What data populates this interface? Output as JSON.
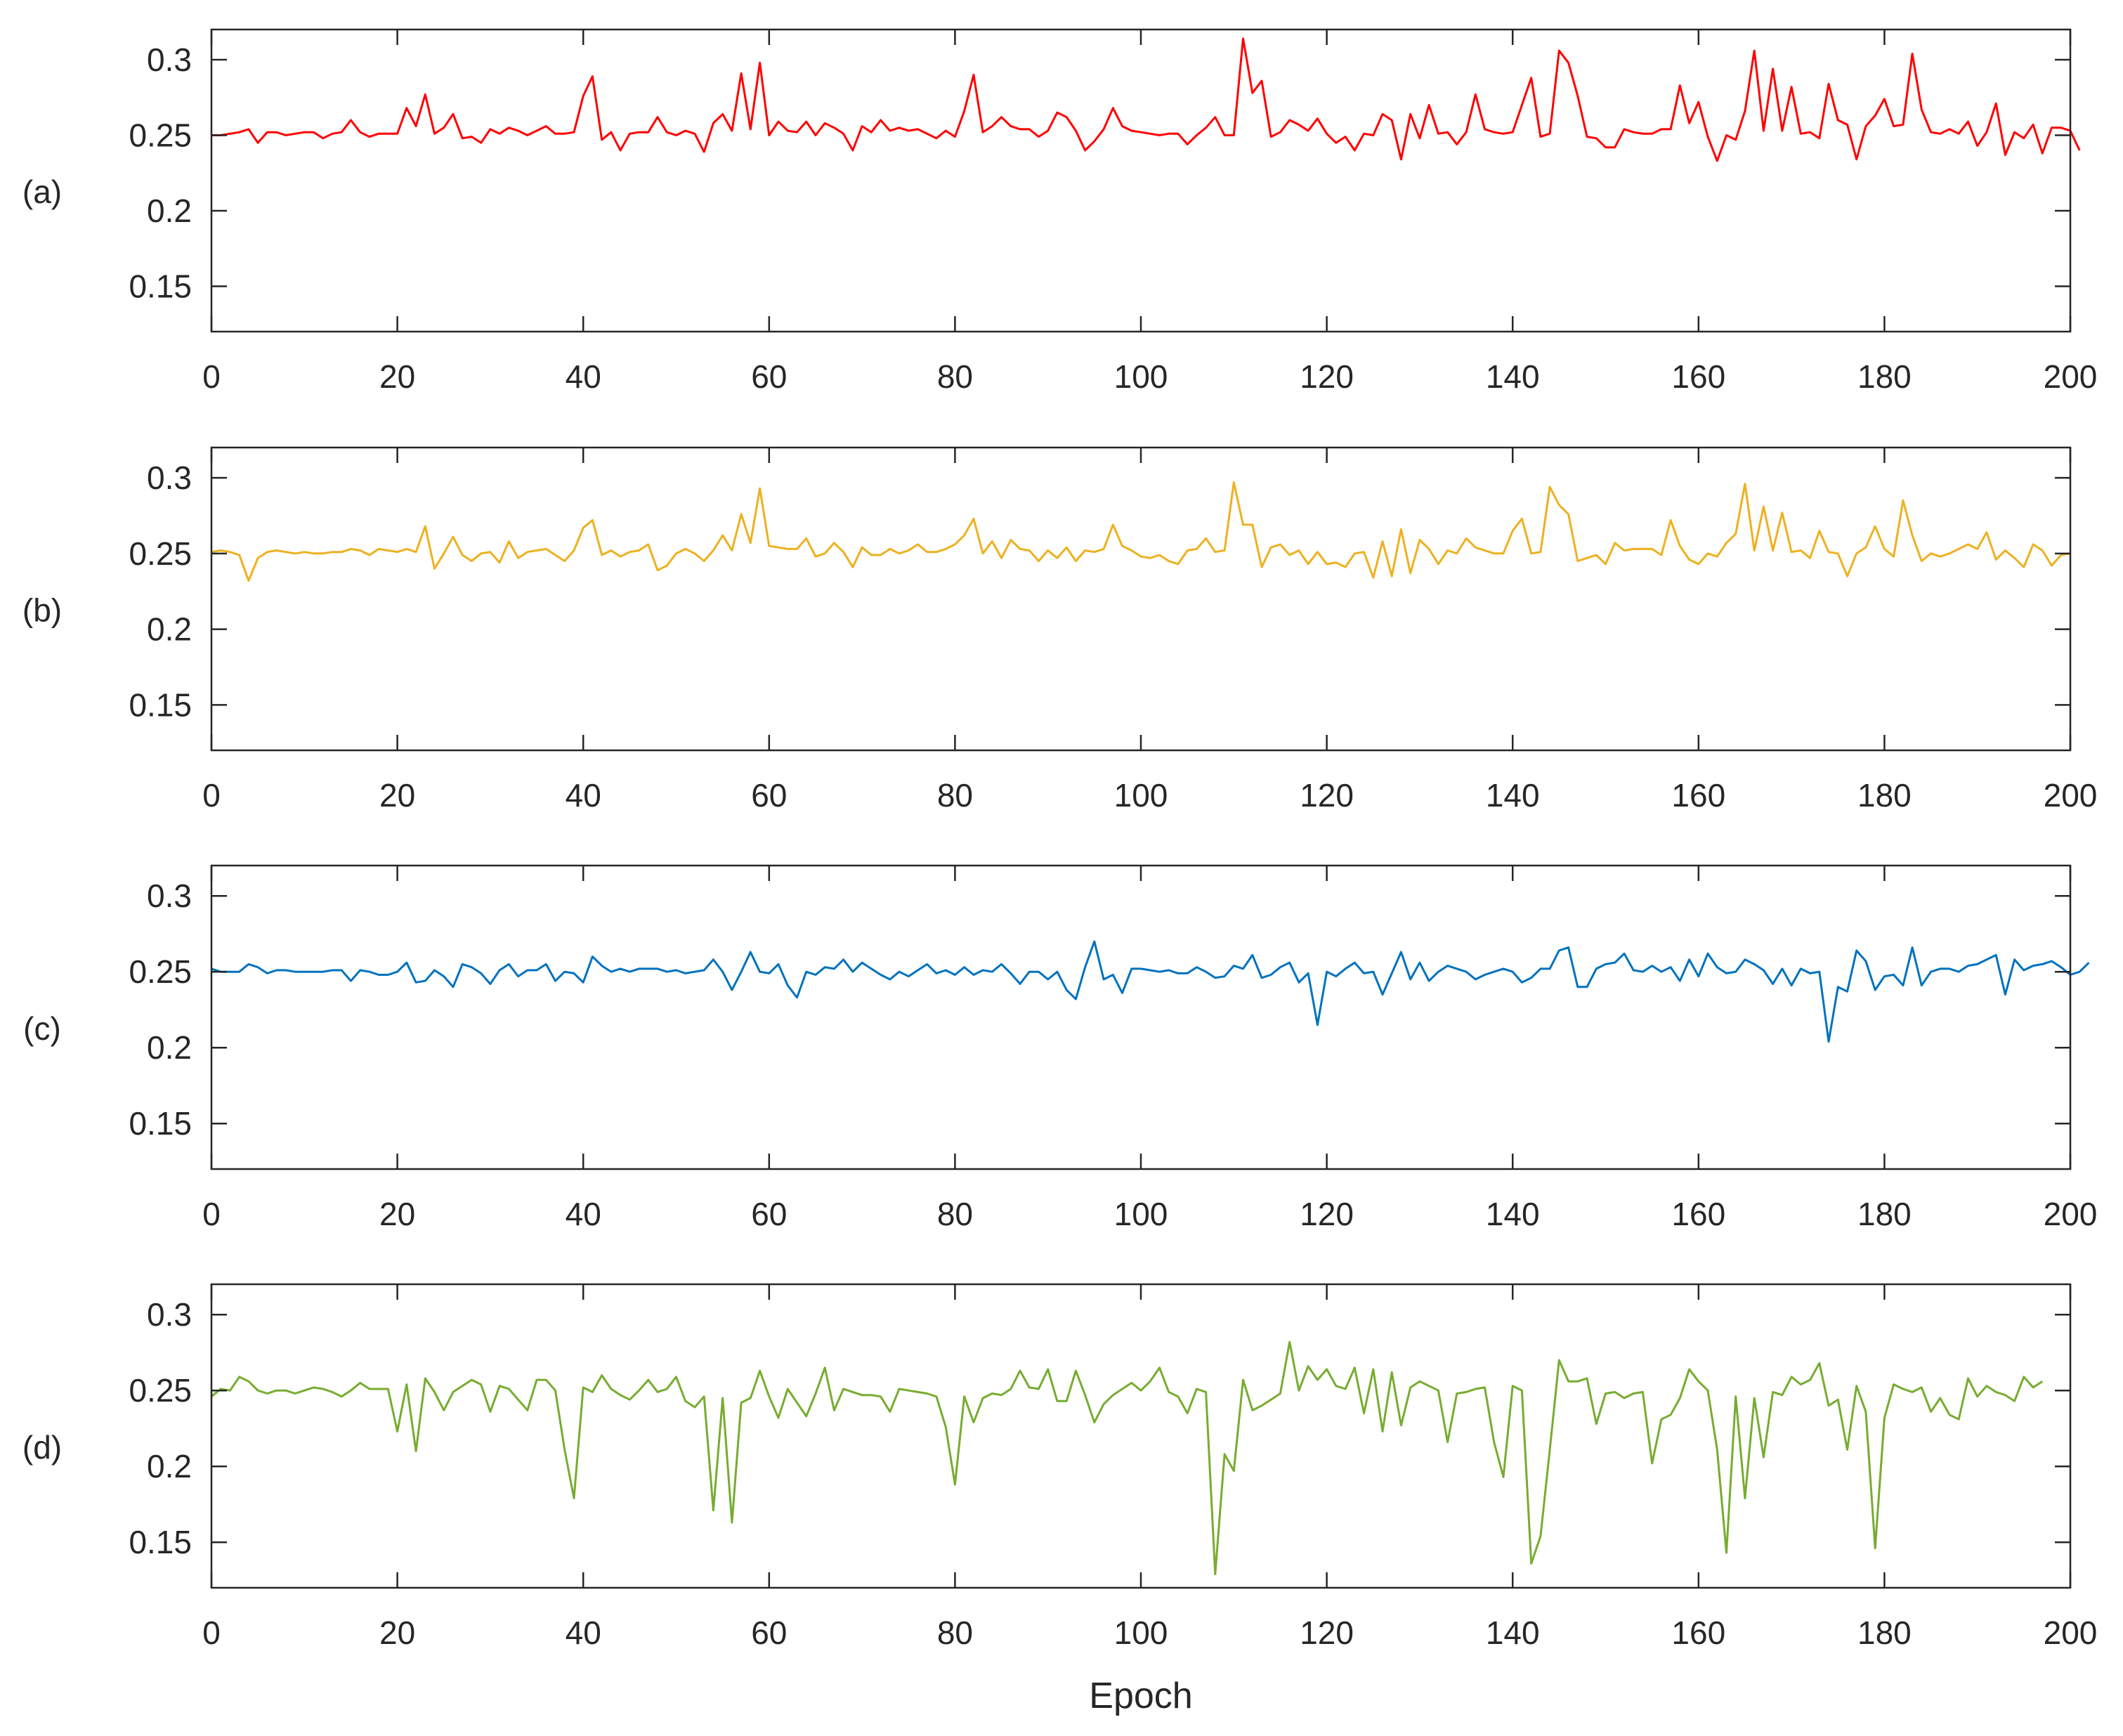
{
  "figure": {
    "xlabel": "Epoch"
  },
  "chart_data": [
    {
      "type": "line",
      "label": "(a)",
      "color": "#ff0000",
      "xlim": [
        0,
        200
      ],
      "ylim": [
        0.12,
        0.32
      ],
      "xticks": [
        0,
        20,
        40,
        60,
        80,
        100,
        120,
        140,
        160,
        180,
        200
      ],
      "xtick_labels": [
        "0",
        "20",
        "40",
        "60",
        "80",
        "100",
        "120",
        "140",
        "160",
        "180",
        "200"
      ],
      "yticks": [
        0.15,
        0.2,
        0.25,
        0.3
      ],
      "ytick_labels": [
        "0.15",
        "0.2",
        "0.25",
        "0.3"
      ],
      "xlabel": "",
      "x_start": 0,
      "x_step": 1,
      "values": [
        0.25,
        0.25,
        0.251,
        0.252,
        0.254,
        0.245,
        0.252,
        0.252,
        0.25,
        0.251,
        0.252,
        0.252,
        0.248,
        0.251,
        0.252,
        0.26,
        0.252,
        0.249,
        0.251,
        0.251,
        0.251,
        0.268,
        0.256,
        0.277,
        0.251,
        0.255,
        0.264,
        0.248,
        0.249,
        0.245,
        0.254,
        0.251,
        0.255,
        0.253,
        0.25,
        0.253,
        0.256,
        0.251,
        0.251,
        0.252,
        0.276,
        0.289,
        0.247,
        0.252,
        0.24,
        0.251,
        0.252,
        0.252,
        0.262,
        0.252,
        0.25,
        0.253,
        0.251,
        0.239,
        0.258,
        0.264,
        0.253,
        0.291,
        0.254,
        0.298,
        0.25,
        0.259,
        0.253,
        0.252,
        0.259,
        0.25,
        0.258,
        0.255,
        0.251,
        0.24,
        0.256,
        0.252,
        0.26,
        0.253,
        0.255,
        0.253,
        0.254,
        0.251,
        0.248,
        0.253,
        0.249,
        0.266,
        0.29,
        0.252,
        0.256,
        0.262,
        0.256,
        0.254,
        0.254,
        0.249,
        0.253,
        0.265,
        0.262,
        0.253,
        0.24,
        0.246,
        0.254,
        0.268,
        0.256,
        0.253,
        0.252,
        0.251,
        0.25,
        0.251,
        0.251,
        0.244,
        0.25,
        0.255,
        0.262,
        0.25,
        0.25,
        0.314,
        0.278,
        0.286,
        0.249,
        0.252,
        0.26,
        0.257,
        0.253,
        0.261,
        0.251,
        0.245,
        0.249,
        0.24,
        0.251,
        0.25,
        0.264,
        0.26,
        0.234,
        0.264,
        0.248,
        0.27,
        0.251,
        0.252,
        0.244,
        0.252,
        0.277,
        0.254,
        0.252,
        0.251,
        0.252,
        0.27,
        0.288,
        0.249,
        0.251,
        0.306,
        0.298,
        0.276,
        0.249,
        0.248,
        0.242,
        0.242,
        0.254,
        0.252,
        0.251,
        0.251,
        0.254,
        0.254,
        0.283,
        0.258,
        0.272,
        0.249,
        0.233,
        0.25,
        0.247,
        0.266,
        0.306,
        0.253,
        0.294,
        0.253,
        0.282,
        0.251,
        0.252,
        0.248,
        0.284,
        0.26,
        0.257,
        0.234,
        0.256,
        0.263,
        0.274,
        0.256,
        0.257,
        0.304,
        0.267,
        0.252,
        0.251,
        0.254,
        0.251,
        0.259,
        0.243,
        0.252,
        0.271,
        0.237,
        0.252,
        0.248,
        0.257,
        0.238,
        0.255,
        0.255,
        0.253,
        0.24
      ]
    },
    {
      "type": "line",
      "label": "(b)",
      "color": "#edb120",
      "xlim": [
        0,
        200
      ],
      "ylim": [
        0.12,
        0.32
      ],
      "xticks": [
        0,
        20,
        40,
        60,
        80,
        100,
        120,
        140,
        160,
        180,
        200
      ],
      "xtick_labels": [
        "0",
        "20",
        "40",
        "60",
        "80",
        "100",
        "120",
        "140",
        "160",
        "180",
        "200"
      ],
      "yticks": [
        0.15,
        0.2,
        0.25,
        0.3
      ],
      "ytick_labels": [
        "0.15",
        "0.2",
        "0.25",
        "0.3"
      ],
      "xlabel": "",
      "x_start": 0,
      "x_step": 1,
      "values": [
        0.251,
        0.252,
        0.251,
        0.249,
        0.232,
        0.247,
        0.251,
        0.252,
        0.251,
        0.25,
        0.251,
        0.25,
        0.25,
        0.251,
        0.251,
        0.253,
        0.252,
        0.249,
        0.253,
        0.252,
        0.251,
        0.253,
        0.251,
        0.268,
        0.24,
        0.25,
        0.261,
        0.249,
        0.245,
        0.25,
        0.251,
        0.244,
        0.258,
        0.247,
        0.251,
        0.252,
        0.253,
        0.249,
        0.245,
        0.252,
        0.267,
        0.272,
        0.249,
        0.252,
        0.248,
        0.251,
        0.252,
        0.256,
        0.239,
        0.242,
        0.25,
        0.253,
        0.25,
        0.245,
        0.252,
        0.262,
        0.252,
        0.276,
        0.257,
        0.293,
        0.255,
        0.254,
        0.253,
        0.253,
        0.26,
        0.248,
        0.25,
        0.257,
        0.251,
        0.241,
        0.254,
        0.249,
        0.249,
        0.253,
        0.25,
        0.252,
        0.256,
        0.251,
        0.251,
        0.253,
        0.256,
        0.262,
        0.273,
        0.25,
        0.258,
        0.247,
        0.259,
        0.253,
        0.252,
        0.245,
        0.252,
        0.247,
        0.254,
        0.245,
        0.252,
        0.251,
        0.253,
        0.269,
        0.255,
        0.252,
        0.248,
        0.247,
        0.249,
        0.245,
        0.243,
        0.252,
        0.253,
        0.26,
        0.251,
        0.252,
        0.297,
        0.269,
        0.269,
        0.241,
        0.254,
        0.256,
        0.249,
        0.252,
        0.243,
        0.251,
        0.243,
        0.244,
        0.241,
        0.25,
        0.251,
        0.234,
        0.258,
        0.235,
        0.266,
        0.237,
        0.259,
        0.253,
        0.243,
        0.252,
        0.25,
        0.26,
        0.254,
        0.252,
        0.25,
        0.25,
        0.265,
        0.273,
        0.25,
        0.251,
        0.294,
        0.282,
        0.276,
        0.245,
        0.247,
        0.249,
        0.243,
        0.257,
        0.252,
        0.253,
        0.253,
        0.253,
        0.249,
        0.272,
        0.255,
        0.246,
        0.243,
        0.25,
        0.248,
        0.257,
        0.263,
        0.296,
        0.252,
        0.281,
        0.252,
        0.277,
        0.251,
        0.252,
        0.247,
        0.265,
        0.251,
        0.25,
        0.235,
        0.25,
        0.254,
        0.268,
        0.253,
        0.248,
        0.285,
        0.262,
        0.245,
        0.25,
        0.248,
        0.25,
        0.253,
        0.256,
        0.253,
        0.264,
        0.246,
        0.252,
        0.247,
        0.241,
        0.256,
        0.252,
        0.242,
        0.249,
        0.25
      ]
    },
    {
      "type": "line",
      "label": "(c)",
      "color": "#0072bd",
      "xlim": [
        0,
        200
      ],
      "ylim": [
        0.12,
        0.32
      ],
      "xticks": [
        0,
        20,
        40,
        60,
        80,
        100,
        120,
        140,
        160,
        180,
        200
      ],
      "xtick_labels": [
        "0",
        "20",
        "40",
        "60",
        "80",
        "100",
        "120",
        "140",
        "160",
        "180",
        "200"
      ],
      "yticks": [
        0.15,
        0.2,
        0.25,
        0.3
      ],
      "ytick_labels": [
        "0.15",
        "0.2",
        "0.25",
        "0.3"
      ],
      "xlabel": "",
      "x_start": 0,
      "x_step": 1,
      "values": [
        0.252,
        0.25,
        0.25,
        0.25,
        0.255,
        0.253,
        0.249,
        0.251,
        0.251,
        0.25,
        0.25,
        0.25,
        0.25,
        0.251,
        0.251,
        0.244,
        0.251,
        0.25,
        0.248,
        0.248,
        0.25,
        0.256,
        0.243,
        0.244,
        0.251,
        0.247,
        0.24,
        0.255,
        0.253,
        0.249,
        0.242,
        0.251,
        0.255,
        0.247,
        0.251,
        0.251,
        0.255,
        0.244,
        0.25,
        0.249,
        0.243,
        0.26,
        0.254,
        0.25,
        0.252,
        0.25,
        0.252,
        0.252,
        0.252,
        0.25,
        0.251,
        0.249,
        0.25,
        0.251,
        0.258,
        0.25,
        0.238,
        0.25,
        0.263,
        0.25,
        0.249,
        0.255,
        0.241,
        0.233,
        0.25,
        0.248,
        0.253,
        0.252,
        0.258,
        0.25,
        0.256,
        0.252,
        0.248,
        0.245,
        0.25,
        0.247,
        0.251,
        0.255,
        0.249,
        0.251,
        0.248,
        0.253,
        0.248,
        0.251,
        0.25,
        0.255,
        0.249,
        0.242,
        0.25,
        0.25,
        0.245,
        0.25,
        0.238,
        0.232,
        0.253,
        0.27,
        0.245,
        0.248,
        0.236,
        0.252,
        0.252,
        0.251,
        0.25,
        0.251,
        0.249,
        0.249,
        0.253,
        0.25,
        0.246,
        0.247,
        0.254,
        0.252,
        0.261,
        0.246,
        0.248,
        0.253,
        0.256,
        0.243,
        0.249,
        0.215,
        0.25,
        0.247,
        0.252,
        0.256,
        0.249,
        0.25,
        0.235,
        0.249,
        0.263,
        0.245,
        0.256,
        0.244,
        0.25,
        0.254,
        0.252,
        0.25,
        0.245,
        0.248,
        0.25,
        0.252,
        0.25,
        0.243,
        0.246,
        0.252,
        0.252,
        0.264,
        0.266,
        0.24,
        0.24,
        0.252,
        0.255,
        0.256,
        0.262,
        0.251,
        0.25,
        0.254,
        0.25,
        0.253,
        0.244,
        0.258,
        0.247,
        0.262,
        0.253,
        0.249,
        0.25,
        0.258,
        0.255,
        0.251,
        0.242,
        0.252,
        0.241,
        0.252,
        0.249,
        0.25,
        0.204,
        0.24,
        0.237,
        0.264,
        0.257,
        0.238,
        0.247,
        0.248,
        0.241,
        0.266,
        0.241,
        0.25,
        0.252,
        0.252,
        0.25,
        0.254,
        0.255,
        0.258,
        0.261,
        0.235,
        0.258,
        0.251,
        0.254,
        0.255,
        0.257,
        0.253,
        0.248,
        0.25,
        0.256
      ]
    },
    {
      "type": "line",
      "label": "(d)",
      "color": "#77ac30",
      "xlim": [
        0,
        200
      ],
      "ylim": [
        0.12,
        0.32
      ],
      "xticks": [
        0,
        20,
        40,
        60,
        80,
        100,
        120,
        140,
        160,
        180,
        200
      ],
      "xtick_labels": [
        "0",
        "20",
        "40",
        "60",
        "80",
        "100",
        "120",
        "140",
        "160",
        "180",
        "200"
      ],
      "yticks": [
        0.15,
        0.2,
        0.25,
        0.3
      ],
      "ytick_labels": [
        "0.15",
        "0.2",
        "0.25",
        "0.3"
      ],
      "xlabel": "Epoch",
      "x_start": 0,
      "x_step": 1,
      "values": [
        0.246,
        0.251,
        0.25,
        0.259,
        0.256,
        0.25,
        0.248,
        0.25,
        0.25,
        0.248,
        0.25,
        0.252,
        0.251,
        0.249,
        0.246,
        0.25,
        0.255,
        0.251,
        0.251,
        0.251,
        0.223,
        0.254,
        0.21,
        0.258,
        0.249,
        0.237,
        0.249,
        0.253,
        0.257,
        0.254,
        0.236,
        0.253,
        0.251,
        0.244,
        0.237,
        0.257,
        0.257,
        0.25,
        0.211,
        0.179,
        0.252,
        0.249,
        0.26,
        0.251,
        0.247,
        0.244,
        0.25,
        0.257,
        0.249,
        0.251,
        0.259,
        0.243,
        0.239,
        0.246,
        0.171,
        0.245,
        0.163,
        0.242,
        0.245,
        0.263,
        0.246,
        0.232,
        0.251,
        0.242,
        0.233,
        0.248,
        0.265,
        0.237,
        0.251,
        0.249,
        0.247,
        0.247,
        0.246,
        0.236,
        0.251,
        0.25,
        0.249,
        0.248,
        0.246,
        0.226,
        0.188,
        0.246,
        0.229,
        0.245,
        0.248,
        0.247,
        0.251,
        0.263,
        0.252,
        0.251,
        0.264,
        0.243,
        0.243,
        0.263,
        0.247,
        0.229,
        0.241,
        0.247,
        0.251,
        0.255,
        0.25,
        0.256,
        0.265,
        0.249,
        0.246,
        0.235,
        0.251,
        0.249,
        0.129,
        0.208,
        0.197,
        0.257,
        0.237,
        0.24,
        0.244,
        0.248,
        0.282,
        0.25,
        0.266,
        0.257,
        0.264,
        0.253,
        0.251,
        0.265,
        0.235,
        0.264,
        0.223,
        0.262,
        0.227,
        0.252,
        0.256,
        0.253,
        0.25,
        0.216,
        0.248,
        0.249,
        0.251,
        0.252,
        0.216,
        0.193,
        0.253,
        0.25,
        0.136,
        0.154,
        0.211,
        0.27,
        0.256,
        0.256,
        0.258,
        0.228,
        0.248,
        0.249,
        0.245,
        0.248,
        0.249,
        0.202,
        0.231,
        0.234,
        0.245,
        0.264,
        0.256,
        0.25,
        0.211,
        0.143,
        0.246,
        0.179,
        0.245,
        0.206,
        0.249,
        0.247,
        0.259,
        0.254,
        0.257,
        0.268,
        0.24,
        0.244,
        0.211,
        0.253,
        0.236,
        0.146,
        0.232,
        0.254,
        0.251,
        0.249,
        0.252,
        0.236,
        0.245,
        0.234,
        0.231,
        0.258,
        0.246,
        0.253,
        0.249,
        0.247,
        0.243,
        0.259,
        0.252,
        0.256
      ]
    }
  ]
}
